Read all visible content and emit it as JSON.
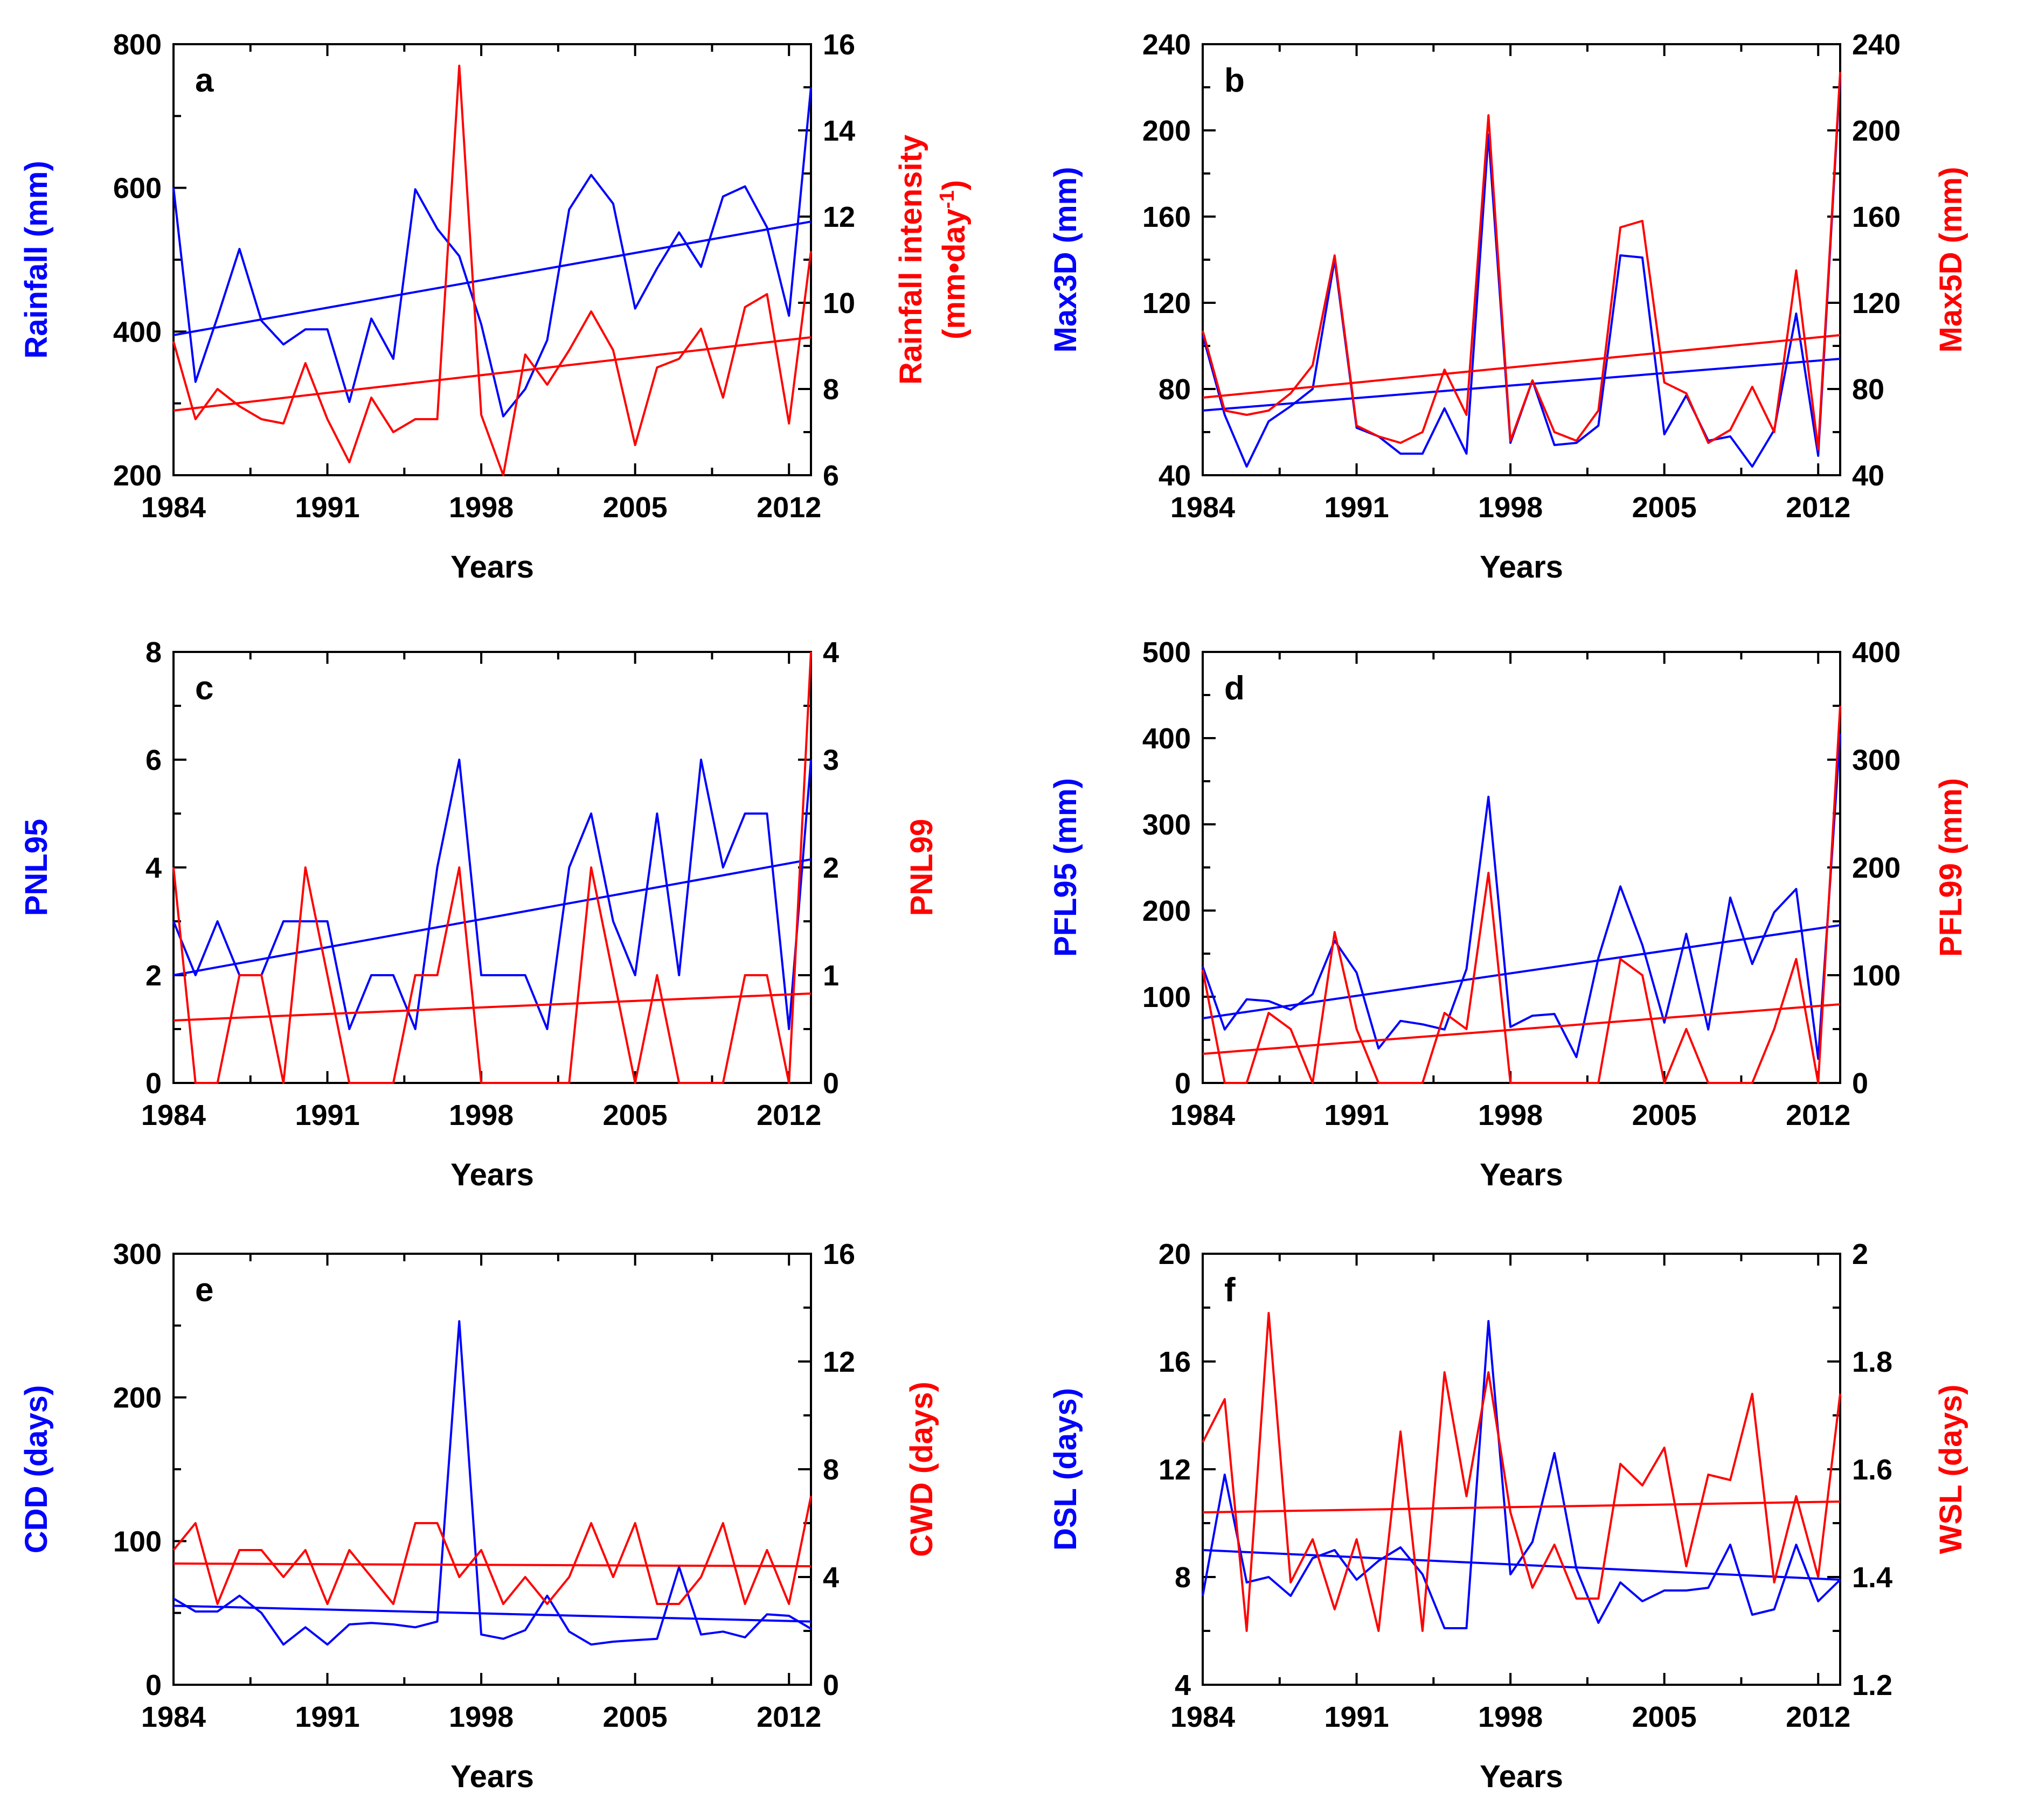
{
  "figure": {
    "xlabel": "Years",
    "xticks": [
      1984,
      1991,
      1998,
      2005,
      2012
    ],
    "xlim": [
      1984,
      2013
    ]
  },
  "colors": {
    "left_series": "#0000ff",
    "right_series": "#ff0000",
    "axes": "#000000"
  },
  "chart_data": [
    {
      "type": "line",
      "panel": "a",
      "xlabel": "Years",
      "ylabel_left": "Rainfall (mm)",
      "ylabel_right": [
        "Rainfall intensity",
        "(mm•day",
        "-1",
        ")"
      ],
      "ylim_left": [
        200,
        800
      ],
      "yticks_left": [
        200,
        400,
        600,
        800
      ],
      "ylim_right": [
        6,
        16
      ],
      "yticks_right": [
        6,
        8,
        10,
        12,
        14,
        16
      ],
      "x": [
        1984,
        1985,
        1986,
        1987,
        1988,
        1989,
        1990,
        1991,
        1992,
        1993,
        1994,
        1995,
        1996,
        1997,
        1998,
        1999,
        2000,
        2001,
        2002,
        2003,
        2004,
        2005,
        2006,
        2007,
        2008,
        2009,
        2010,
        2011,
        2012,
        2013
      ],
      "series": [
        {
          "name": "Rainfall",
          "axis": "left",
          "values": [
            600,
            330,
            420,
            515,
            415,
            382,
            403,
            403,
            302,
            418,
            362,
            598,
            543,
            505,
            410,
            282,
            320,
            388,
            570,
            618,
            578,
            432,
            488,
            538,
            490,
            588,
            602,
            545,
            422,
            740
          ],
          "trend": [
            395,
            553
          ]
        },
        {
          "name": "Rainfall intensity",
          "axis": "right",
          "values": [
            9.1,
            7.3,
            8.0,
            7.6,
            7.3,
            7.2,
            8.6,
            7.3,
            6.3,
            7.8,
            7.0,
            7.3,
            7.3,
            15.5,
            7.4,
            6.0,
            8.8,
            8.1,
            8.9,
            9.8,
            8.9,
            6.7,
            8.5,
            8.7,
            9.4,
            7.8,
            9.9,
            10.2,
            7.2,
            11.2
          ],
          "trend": [
            7.5,
            9.2
          ]
        }
      ]
    },
    {
      "type": "line",
      "panel": "b",
      "xlabel": "Years",
      "ylabel_left": "Max3D (mm)",
      "ylabel_right": "Max5D (mm)",
      "ylim_left": [
        40,
        240
      ],
      "yticks_left": [
        40,
        80,
        120,
        160,
        200,
        240
      ],
      "ylim_right": [
        40,
        240
      ],
      "yticks_right": [
        40,
        80,
        120,
        160,
        200,
        240
      ],
      "x": [
        1984,
        1985,
        1986,
        1987,
        1988,
        1989,
        1990,
        1991,
        1992,
        1993,
        1994,
        1995,
        1996,
        1997,
        1998,
        1999,
        2000,
        2001,
        2002,
        2003,
        2004,
        2005,
        2006,
        2007,
        2008,
        2009,
        2010,
        2011,
        2012,
        2013
      ],
      "series": [
        {
          "name": "Max3D",
          "axis": "left",
          "values": [
            105,
            68,
            44,
            65,
            72,
            80,
            140,
            62,
            58,
            50,
            50,
            71,
            50,
            198,
            55,
            84,
            54,
            55,
            63,
            142,
            141,
            59,
            77,
            56,
            58,
            44,
            61,
            115,
            49,
            225
          ],
          "trend": [
            70,
            94
          ]
        },
        {
          "name": "Max5D",
          "axis": "right",
          "values": [
            107,
            70,
            68,
            70,
            78,
            91,
            142,
            63,
            58,
            55,
            60,
            89,
            68,
            207,
            56,
            84,
            60,
            56,
            70,
            155,
            158,
            83,
            78,
            55,
            61,
            81,
            60,
            135,
            52,
            227
          ],
          "trend": [
            76,
            105
          ]
        }
      ]
    },
    {
      "type": "line",
      "panel": "c",
      "xlabel": "Years",
      "ylabel_left": "PNL95",
      "ylabel_right": "PNL99",
      "ylim_left": [
        0,
        8
      ],
      "yticks_left": [
        0,
        2,
        4,
        6,
        8
      ],
      "ylim_right": [
        0,
        4
      ],
      "yticks_right": [
        0,
        1,
        2,
        3,
        4
      ],
      "x": [
        1984,
        1985,
        1986,
        1987,
        1988,
        1989,
        1990,
        1991,
        1992,
        1993,
        1994,
        1995,
        1996,
        1997,
        1998,
        1999,
        2000,
        2001,
        2002,
        2003,
        2004,
        2005,
        2006,
        2007,
        2008,
        2009,
        2010,
        2011,
        2012,
        2013
      ],
      "series": [
        {
          "name": "PNL95",
          "axis": "left",
          "values": [
            3,
            2,
            3,
            2,
            2,
            3,
            3,
            3,
            1,
            2,
            2,
            1,
            4,
            6,
            2,
            2,
            2,
            1,
            4,
            5,
            3,
            2,
            5,
            2,
            6,
            4,
            5,
            5,
            1,
            6
          ],
          "trend": [
            2.0,
            4.15
          ]
        },
        {
          "name": "PNL99",
          "axis": "right",
          "values": [
            2,
            0,
            0,
            1,
            1,
            0,
            2,
            1,
            0,
            0,
            0,
            1,
            1,
            2,
            0,
            0,
            0,
            0,
            0,
            2,
            1,
            0,
            1,
            0,
            0,
            0,
            1,
            1,
            0,
            4
          ],
          "trend": [
            0.58,
            0.83
          ]
        }
      ]
    },
    {
      "type": "line",
      "panel": "d",
      "xlabel": "Years",
      "ylabel_left": "PFL95 (mm)",
      "ylabel_right": "PFL99 (mm)",
      "ylim_left": [
        0,
        500
      ],
      "yticks_left": [
        0,
        100,
        200,
        300,
        400,
        500
      ],
      "ylim_right": [
        0,
        400
      ],
      "yticks_right": [
        0,
        100,
        200,
        300,
        400
      ],
      "x": [
        1984,
        1985,
        1986,
        1987,
        1988,
        1989,
        1990,
        1991,
        1992,
        1993,
        1994,
        1995,
        1996,
        1997,
        1998,
        1999,
        2000,
        2001,
        2002,
        2003,
        2004,
        2005,
        2006,
        2007,
        2008,
        2009,
        2010,
        2011,
        2012,
        2013
      ],
      "series": [
        {
          "name": "PFL95",
          "axis": "left",
          "values": [
            135,
            62,
            97,
            95,
            85,
            103,
            165,
            128,
            40,
            72,
            68,
            62,
            132,
            332,
            65,
            78,
            80,
            30,
            145,
            228,
            160,
            70,
            173,
            62,
            215,
            138,
            198,
            225,
            28,
            405
          ],
          "trend": [
            75,
            183
          ]
        },
        {
          "name": "PFL99",
          "axis": "right",
          "values": [
            105,
            0,
            0,
            65,
            50,
            0,
            140,
            50,
            0,
            0,
            0,
            65,
            50,
            195,
            0,
            0,
            0,
            0,
            0,
            115,
            100,
            0,
            50,
            0,
            0,
            0,
            50,
            115,
            0,
            350
          ],
          "trend": [
            27,
            73
          ]
        }
      ]
    },
    {
      "type": "line",
      "panel": "e",
      "xlabel": "Years",
      "ylabel_left": "CDD (days)",
      "ylabel_right": "CWD (days)",
      "ylim_left": [
        0,
        300
      ],
      "yticks_left": [
        0,
        100,
        200,
        300
      ],
      "ylim_right": [
        0,
        16
      ],
      "yticks_right": [
        0,
        4,
        8,
        12,
        16
      ],
      "x": [
        1984,
        1985,
        1986,
        1987,
        1988,
        1989,
        1990,
        1991,
        1992,
        1993,
        1994,
        1995,
        1996,
        1997,
        1998,
        1999,
        2000,
        2001,
        2002,
        2003,
        2004,
        2005,
        2006,
        2007,
        2008,
        2009,
        2010,
        2011,
        2012,
        2013
      ],
      "series": [
        {
          "name": "CDD",
          "axis": "left",
          "values": [
            60,
            51,
            51,
            62,
            50,
            28,
            40,
            28,
            42,
            43,
            42,
            40,
            44,
            253,
            35,
            32,
            38,
            62,
            37,
            28,
            30,
            31,
            32,
            82,
            35,
            37,
            33,
            49,
            48,
            39
          ],
          "trend": [
            55,
            44
          ]
        },
        {
          "name": "CWD",
          "axis": "right",
          "values": [
            5,
            6,
            3,
            5,
            5,
            4,
            5,
            3,
            5,
            4,
            3,
            6,
            6,
            4,
            5,
            3,
            4,
            3,
            4,
            6,
            4,
            6,
            3,
            3,
            4,
            6,
            3,
            5,
            3,
            7
          ],
          "trend": [
            4.5,
            4.4
          ]
        }
      ]
    },
    {
      "type": "line",
      "panel": "f",
      "xlabel": "Years",
      "ylabel_left": "DSL (days)",
      "ylabel_right": "WSL (days)",
      "ylim_left": [
        4,
        20
      ],
      "yticks_left": [
        4,
        8,
        12,
        16,
        20
      ],
      "ylim_right": [
        1.2,
        2.0
      ],
      "yticks_right": [
        1.2,
        1.4,
        1.6,
        1.8,
        2
      ],
      "x": [
        1984,
        1985,
        1986,
        1987,
        1988,
        1989,
        1990,
        1991,
        1992,
        1993,
        1994,
        1995,
        1996,
        1997,
        1998,
        1999,
        2000,
        2001,
        2002,
        2003,
        2004,
        2005,
        2006,
        2007,
        2008,
        2009,
        2010,
        2011,
        2012,
        2013
      ],
      "series": [
        {
          "name": "DSL",
          "axis": "left",
          "values": [
            7.3,
            11.8,
            7.8,
            8.0,
            7.3,
            8.7,
            9.0,
            7.9,
            8.6,
            9.1,
            8.1,
            6.1,
            6.1,
            17.5,
            8.1,
            9.3,
            12.6,
            8.3,
            6.3,
            7.8,
            7.1,
            7.5,
            7.5,
            7.6,
            9.2,
            6.6,
            6.8,
            9.2,
            7.1,
            7.9
          ],
          "trend": [
            9.0,
            7.9
          ]
        },
        {
          "name": "WSL",
          "axis": "right",
          "values": [
            1.65,
            1.73,
            1.3,
            1.89,
            1.39,
            1.47,
            1.34,
            1.47,
            1.3,
            1.67,
            1.3,
            1.78,
            1.55,
            1.78,
            1.52,
            1.38,
            1.46,
            1.36,
            1.36,
            1.61,
            1.57,
            1.64,
            1.42,
            1.59,
            1.58,
            1.74,
            1.39,
            1.55,
            1.4,
            1.74
          ],
          "trend": [
            1.52,
            1.54
          ]
        }
      ]
    }
  ]
}
